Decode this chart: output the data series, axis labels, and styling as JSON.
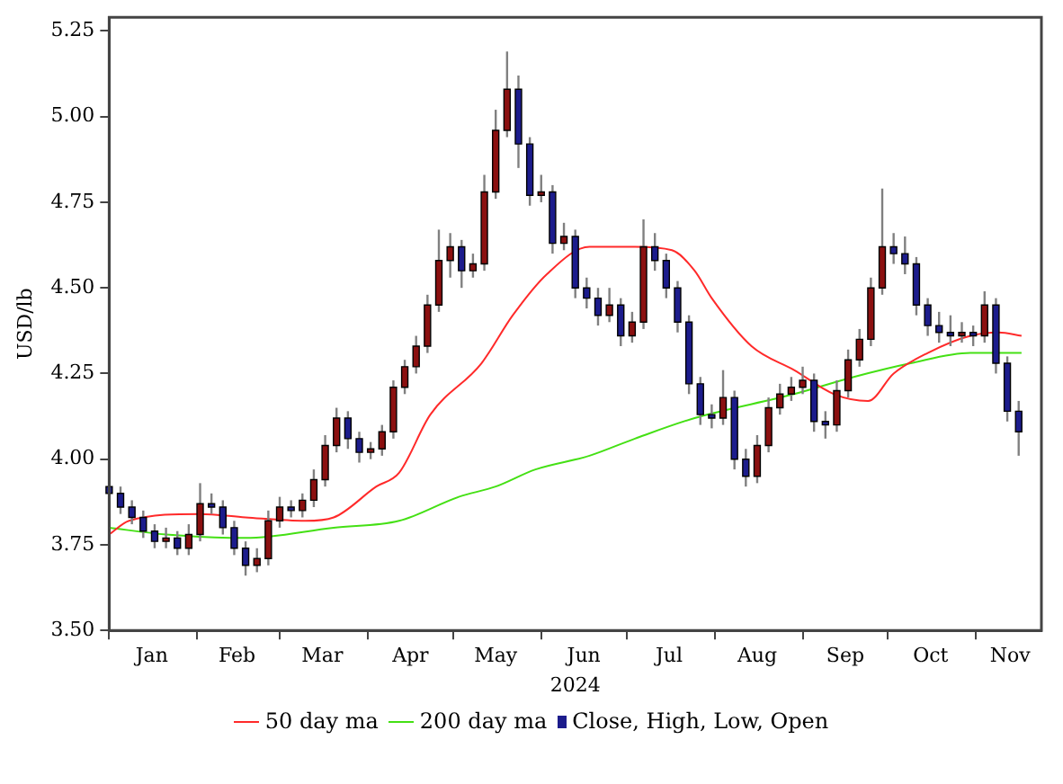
{
  "chart_data": {
    "type": "candlestick",
    "xlabel": "2024",
    "ylabel": "USD/lb",
    "legend": "bottom",
    "grid": false,
    "xlim": [
      "2024-01-01",
      "2024-11-24"
    ],
    "xticks": [
      {
        "value": "2024-01-01",
        "label": null
      },
      {
        "value": "2024-01-16",
        "label": "Jan"
      },
      {
        "value": "2024-02-01",
        "label": null
      },
      {
        "value": "2024-02-15",
        "label": "Feb"
      },
      {
        "value": "2024-03-01",
        "label": null
      },
      {
        "value": "2024-03-16",
        "label": "Mar"
      },
      {
        "value": "2024-04-01",
        "label": null
      },
      {
        "value": "2024-04-16",
        "label": "Apr"
      },
      {
        "value": "2024-05-01",
        "label": null
      },
      {
        "value": "2024-05-16",
        "label": "May"
      },
      {
        "value": "2024-06-01",
        "label": null
      },
      {
        "value": "2024-06-16",
        "label": "Jun"
      },
      {
        "value": "2024-07-01",
        "label": null
      },
      {
        "value": "2024-07-16",
        "label": "Jul"
      },
      {
        "value": "2024-08-01",
        "label": null
      },
      {
        "value": "2024-08-16",
        "label": "Aug"
      },
      {
        "value": "2024-09-01",
        "label": null
      },
      {
        "value": "2024-09-16",
        "label": "Sep"
      },
      {
        "value": "2024-10-01",
        "label": null
      },
      {
        "value": "2024-10-16",
        "label": "Oct"
      },
      {
        "value": "2024-11-01",
        "label": null
      },
      {
        "value": "2024-11-13",
        "label": "Nov"
      }
    ],
    "ylim": [
      3.5,
      5.29
    ],
    "yticks": [
      {
        "value": 3.5,
        "label": "3.50"
      },
      {
        "value": 3.75,
        "label": "3.75"
      },
      {
        "value": 4,
        "label": "4.00"
      },
      {
        "value": 4.25,
        "label": "4.25"
      },
      {
        "value": 4.5,
        "label": "4.50"
      },
      {
        "value": 4.75,
        "label": "4.75"
      },
      {
        "value": 5,
        "label": "5.00"
      },
      {
        "value": 5.25,
        "label": "5.25"
      }
    ],
    "series": [
      {
        "name": "50 day ma",
        "type": "line",
        "color": "#ff2a2a",
        "x": [
          "2024-01-01",
          "2024-01-08",
          "2024-02-02",
          "2024-02-18",
          "2024-03-10",
          "2024-03-20",
          "2024-04-04",
          "2024-04-12",
          "2024-04-23",
          "2024-05-11",
          "2024-05-22",
          "2024-06-03",
          "2024-06-18",
          "2024-07-04",
          "2024-07-17",
          "2024-07-25",
          "2024-07-31",
          "2024-08-14",
          "2024-08-29",
          "2024-09-12",
          "2024-09-24",
          "2024-10-03",
          "2024-10-15",
          "2024-10-30",
          "2024-11-09",
          "2024-11-17"
        ],
        "values": [
          3.78,
          3.82,
          3.84,
          3.83,
          3.82,
          3.83,
          3.92,
          3.96,
          4.13,
          4.28,
          4.42,
          4.54,
          4.62,
          4.62,
          4.61,
          4.55,
          4.47,
          4.33,
          4.26,
          4.19,
          4.17,
          4.25,
          4.31,
          4.36,
          4.37,
          4.36
        ]
      },
      {
        "name": "200 day ma",
        "type": "line",
        "color": "#44e014",
        "x": [
          "2024-01-01",
          "2024-01-21",
          "2024-02-18",
          "2024-03-20",
          "2024-04-12",
          "2024-05-03",
          "2024-05-16",
          "2024-05-30",
          "2024-06-18",
          "2024-07-04",
          "2024-07-25",
          "2024-08-29",
          "2024-09-19",
          "2024-10-09",
          "2024-10-30",
          "2024-11-17"
        ],
        "values": [
          3.8,
          3.78,
          3.77,
          3.8,
          3.82,
          3.89,
          3.92,
          3.97,
          4.01,
          4.06,
          4.12,
          4.19,
          4.24,
          4.28,
          4.31,
          4.31
        ]
      },
      {
        "name": "Close, High, Low, Open",
        "type": "candlestick",
        "color": "#1c1c8c",
        "x": [
          "2024-01-01",
          "2024-01-05",
          "2024-01-09",
          "2024-01-13",
          "2024-01-17",
          "2024-01-21",
          "2024-01-25",
          "2024-01-29",
          "2024-02-02",
          "2024-02-06",
          "2024-02-10",
          "2024-02-14",
          "2024-02-18",
          "2024-02-22",
          "2024-02-26",
          "2024-03-01",
          "2024-03-05",
          "2024-03-09",
          "2024-03-13",
          "2024-03-17",
          "2024-03-21",
          "2024-03-25",
          "2024-03-29",
          "2024-04-02",
          "2024-04-06",
          "2024-04-10",
          "2024-04-14",
          "2024-04-18",
          "2024-04-22",
          "2024-04-26",
          "2024-04-30",
          "2024-05-04",
          "2024-05-08",
          "2024-05-12",
          "2024-05-16",
          "2024-05-20",
          "2024-05-24",
          "2024-05-28",
          "2024-06-01",
          "2024-06-05",
          "2024-06-09",
          "2024-06-13",
          "2024-06-17",
          "2024-06-21",
          "2024-06-25",
          "2024-06-29",
          "2024-07-03",
          "2024-07-07",
          "2024-07-11",
          "2024-07-15",
          "2024-07-19",
          "2024-07-23",
          "2024-07-27",
          "2024-07-31",
          "2024-08-04",
          "2024-08-08",
          "2024-08-12",
          "2024-08-16",
          "2024-08-20",
          "2024-08-24",
          "2024-08-28",
          "2024-09-01",
          "2024-09-05",
          "2024-09-09",
          "2024-09-13",
          "2024-09-17",
          "2024-09-21",
          "2024-09-25",
          "2024-09-29",
          "2024-10-03",
          "2024-10-07",
          "2024-10-11",
          "2024-10-15",
          "2024-10-19",
          "2024-10-23",
          "2024-10-27",
          "2024-10-31",
          "2024-11-04",
          "2024-11-08",
          "2024-11-12",
          "2024-11-16"
        ],
        "ohlc": [
          [
            3.92,
            3.94,
            3.88,
            3.9
          ],
          [
            3.9,
            3.92,
            3.84,
            3.86
          ],
          [
            3.86,
            3.88,
            3.81,
            3.83
          ],
          [
            3.83,
            3.85,
            3.77,
            3.79
          ],
          [
            3.79,
            3.81,
            3.74,
            3.76
          ],
          [
            3.76,
            3.8,
            3.74,
            3.77
          ],
          [
            3.77,
            3.79,
            3.72,
            3.74
          ],
          [
            3.74,
            3.81,
            3.72,
            3.78
          ],
          [
            3.78,
            3.93,
            3.76,
            3.87
          ],
          [
            3.87,
            3.9,
            3.84,
            3.86
          ],
          [
            3.86,
            3.88,
            3.78,
            3.8
          ],
          [
            3.8,
            3.82,
            3.72,
            3.74
          ],
          [
            3.74,
            3.76,
            3.66,
            3.69
          ],
          [
            3.69,
            3.74,
            3.67,
            3.71
          ],
          [
            3.71,
            3.85,
            3.69,
            3.82
          ],
          [
            3.82,
            3.89,
            3.8,
            3.86
          ],
          [
            3.86,
            3.88,
            3.83,
            3.85
          ],
          [
            3.85,
            3.9,
            3.83,
            3.88
          ],
          [
            3.88,
            3.97,
            3.86,
            3.94
          ],
          [
            3.94,
            4.07,
            3.92,
            4.04
          ],
          [
            4.04,
            4.15,
            4.02,
            4.12
          ],
          [
            4.12,
            4.14,
            4.03,
            4.06
          ],
          [
            4.06,
            4.08,
            3.99,
            4.02
          ],
          [
            4.02,
            4.05,
            4.0,
            4.03
          ],
          [
            4.03,
            4.1,
            4.01,
            4.08
          ],
          [
            4.08,
            4.23,
            4.06,
            4.21
          ],
          [
            4.21,
            4.29,
            4.19,
            4.27
          ],
          [
            4.27,
            4.36,
            4.25,
            4.33
          ],
          [
            4.33,
            4.48,
            4.31,
            4.45
          ],
          [
            4.45,
            4.67,
            4.43,
            4.58
          ],
          [
            4.58,
            4.66,
            4.53,
            4.62
          ],
          [
            4.62,
            4.64,
            4.5,
            4.55
          ],
          [
            4.55,
            4.6,
            4.53,
            4.57
          ],
          [
            4.57,
            4.83,
            4.55,
            4.78
          ],
          [
            4.78,
            5.02,
            4.76,
            4.96
          ],
          [
            4.96,
            5.19,
            4.94,
            5.08
          ],
          [
            5.08,
            5.12,
            4.85,
            4.92
          ],
          [
            4.92,
            4.94,
            4.74,
            4.77
          ],
          [
            4.77,
            4.83,
            4.75,
            4.78
          ],
          [
            4.78,
            4.8,
            4.6,
            4.63
          ],
          [
            4.63,
            4.69,
            4.61,
            4.65
          ],
          [
            4.65,
            4.67,
            4.47,
            4.5
          ],
          [
            4.5,
            4.53,
            4.44,
            4.47
          ],
          [
            4.47,
            4.5,
            4.39,
            4.42
          ],
          [
            4.42,
            4.5,
            4.4,
            4.45
          ],
          [
            4.45,
            4.47,
            4.33,
            4.36
          ],
          [
            4.36,
            4.43,
            4.34,
            4.4
          ],
          [
            4.4,
            4.7,
            4.38,
            4.62
          ],
          [
            4.62,
            4.66,
            4.55,
            4.58
          ],
          [
            4.58,
            4.6,
            4.47,
            4.5
          ],
          [
            4.5,
            4.52,
            4.37,
            4.4
          ],
          [
            4.4,
            4.42,
            4.19,
            4.22
          ],
          [
            4.22,
            4.24,
            4.1,
            4.13
          ],
          [
            4.13,
            4.16,
            4.09,
            4.12
          ],
          [
            4.12,
            4.26,
            4.1,
            4.18
          ],
          [
            4.18,
            4.2,
            3.97,
            4.0
          ],
          [
            4.0,
            4.03,
            3.92,
            3.95
          ],
          [
            3.95,
            4.07,
            3.93,
            4.04
          ],
          [
            4.04,
            4.18,
            4.02,
            4.15
          ],
          [
            4.15,
            4.22,
            4.13,
            4.19
          ],
          [
            4.19,
            4.24,
            4.17,
            4.21
          ],
          [
            4.21,
            4.27,
            4.19,
            4.23
          ],
          [
            4.23,
            4.25,
            4.08,
            4.11
          ],
          [
            4.11,
            4.14,
            4.06,
            4.1
          ],
          [
            4.1,
            4.23,
            4.08,
            4.2
          ],
          [
            4.2,
            4.32,
            4.18,
            4.29
          ],
          [
            4.29,
            4.38,
            4.27,
            4.35
          ],
          [
            4.35,
            4.53,
            4.33,
            4.5
          ],
          [
            4.5,
            4.79,
            4.48,
            4.62
          ],
          [
            4.62,
            4.66,
            4.57,
            4.6
          ],
          [
            4.6,
            4.65,
            4.54,
            4.57
          ],
          [
            4.57,
            4.59,
            4.42,
            4.45
          ],
          [
            4.45,
            4.47,
            4.36,
            4.39
          ],
          [
            4.39,
            4.43,
            4.34,
            4.37
          ],
          [
            4.37,
            4.42,
            4.33,
            4.36
          ],
          [
            4.36,
            4.4,
            4.34,
            4.37
          ],
          [
            4.37,
            4.39,
            4.33,
            4.36
          ],
          [
            4.36,
            4.49,
            4.34,
            4.45
          ],
          [
            4.45,
            4.47,
            4.25,
            4.28
          ],
          [
            4.28,
            4.3,
            4.11,
            4.14
          ],
          [
            4.14,
            4.17,
            4.01,
            4.08
          ]
        ],
        "colors": [
          "#1c1c8c",
          "#1c1c8c",
          "#1c1c8c",
          "#1c1c8c",
          "#1c1c8c",
          "#8b1010",
          "#1c1c8c",
          "#8b1010",
          "#8b1010",
          "#1c1c8c",
          "#1c1c8c",
          "#1c1c8c",
          "#1c1c8c",
          "#8b1010",
          "#8b1010",
          "#8b1010",
          "#1c1c8c",
          "#8b1010",
          "#8b1010",
          "#8b1010",
          "#8b1010",
          "#1c1c8c",
          "#1c1c8c",
          "#8b1010",
          "#8b1010",
          "#8b1010",
          "#8b1010",
          "#8b1010",
          "#8b1010",
          "#8b1010",
          "#8b1010",
          "#1c1c8c",
          "#8b1010",
          "#8b1010",
          "#8b1010",
          "#8b1010",
          "#1c1c8c",
          "#1c1c8c",
          "#8b1010",
          "#1c1c8c",
          "#8b1010",
          "#1c1c8c",
          "#1c1c8c",
          "#1c1c8c",
          "#8b1010",
          "#1c1c8c",
          "#8b1010",
          "#8b1010",
          "#1c1c8c",
          "#1c1c8c",
          "#1c1c8c",
          "#1c1c8c",
          "#1c1c8c",
          "#1c1c8c",
          "#8b1010",
          "#1c1c8c",
          "#1c1c8c",
          "#8b1010",
          "#8b1010",
          "#8b1010",
          "#8b1010",
          "#8b1010",
          "#1c1c8c",
          "#1c1c8c",
          "#8b1010",
          "#8b1010",
          "#8b1010",
          "#8b1010",
          "#8b1010",
          "#1c1c8c",
          "#1c1c8c",
          "#1c1c8c",
          "#1c1c8c",
          "#1c1c8c",
          "#1c1c8c",
          "#8b1010",
          "#1c1c8c",
          "#8b1010",
          "#1c1c8c",
          "#1c1c8c",
          "#1c1c8c"
        ]
      }
    ]
  }
}
